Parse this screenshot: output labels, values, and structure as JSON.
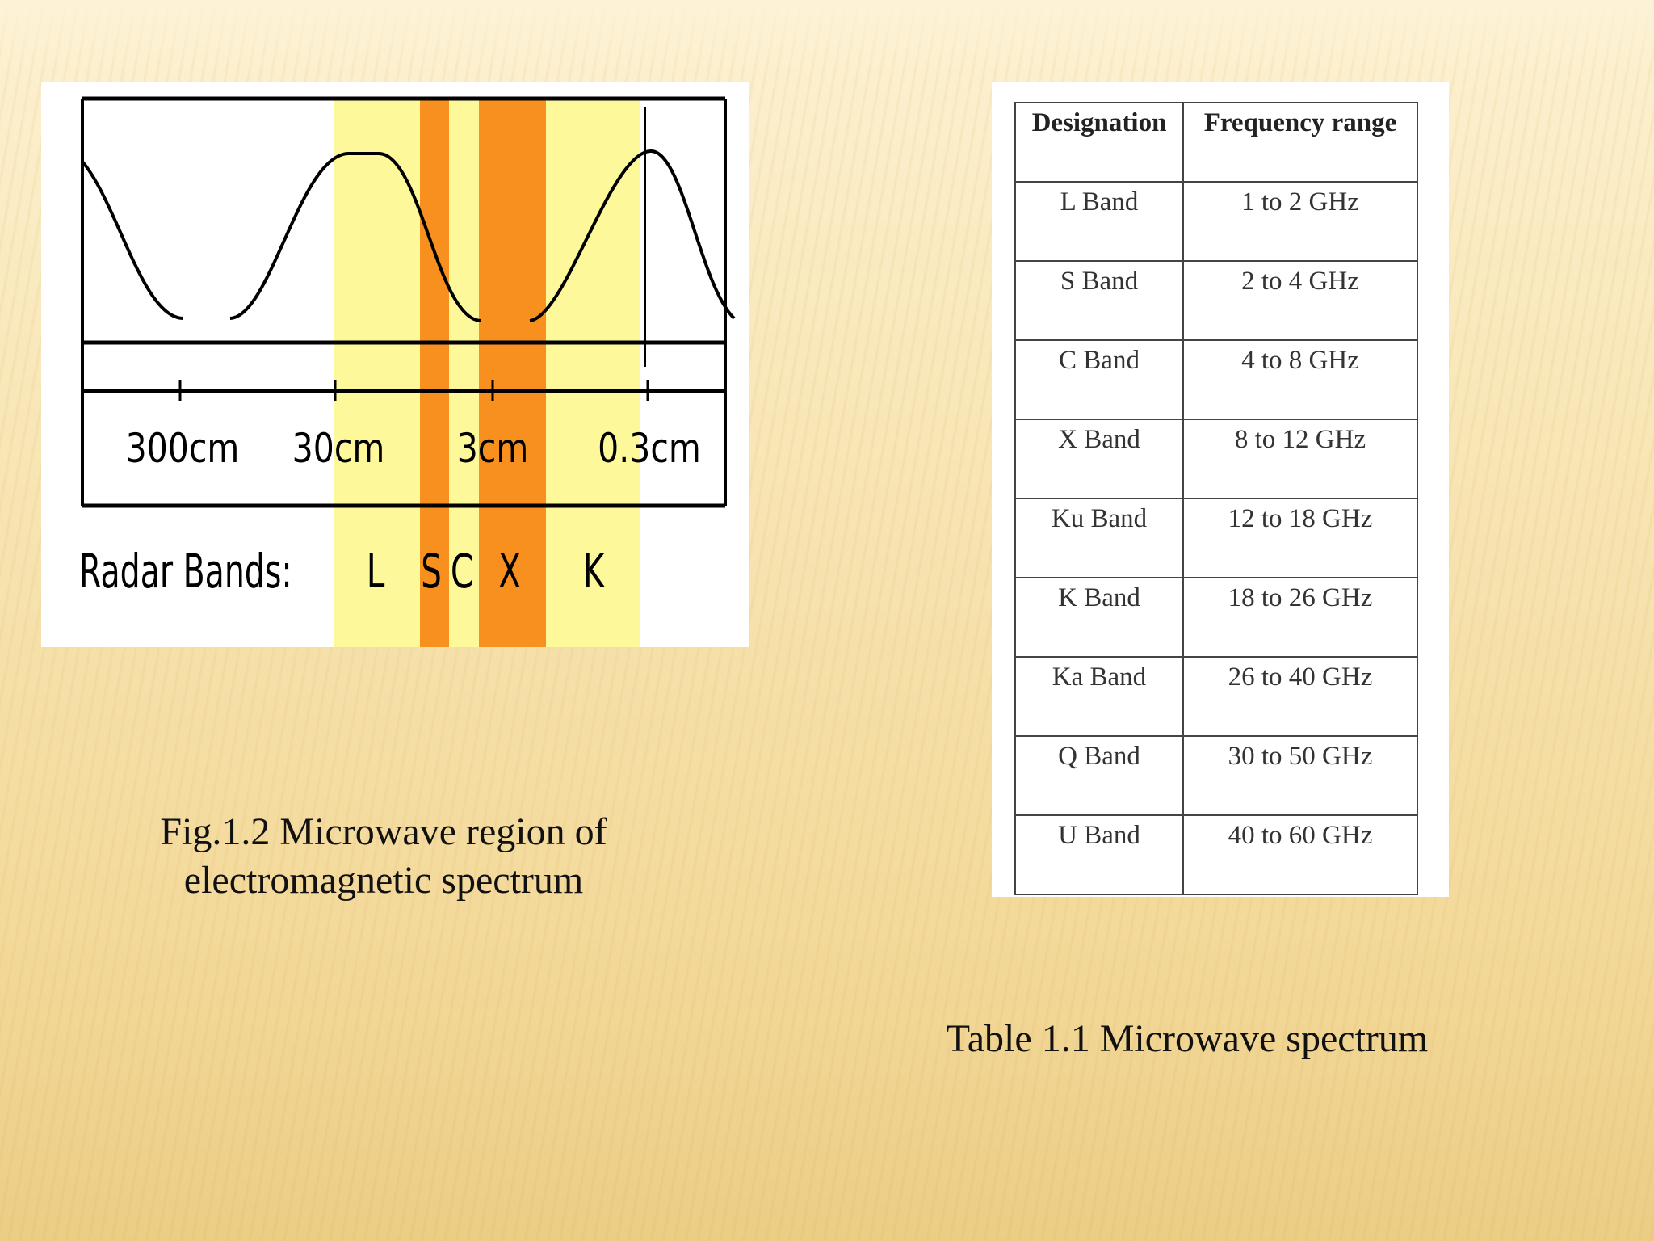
{
  "figure": {
    "scale_labels": [
      "300cm",
      "30cm",
      "3cm",
      "0.3cm"
    ],
    "radar_bands_label": "Radar Bands:",
    "band_letters": [
      "L",
      "S",
      "C",
      "X",
      "K"
    ],
    "colors": {
      "yellow_band": "#fdf99a",
      "orange_band": "#f7901e",
      "line": "#000000"
    }
  },
  "figure_caption": {
    "line1": "Fig.1.2  Microwave region of",
    "line2": "electromagnetic spectrum"
  },
  "table": {
    "headers": [
      "Designation",
      "Frequency range"
    ],
    "rows": [
      [
        "L Band",
        "1 to 2 GHz"
      ],
      [
        "S Band",
        "2 to 4 GHz"
      ],
      [
        "C  Band",
        "4 to 8 GHz"
      ],
      [
        "X Band",
        "8 to 12 GHz"
      ],
      [
        "Ku Band",
        "12 to 18 GHz"
      ],
      [
        "K  Band",
        "18 to 26 GHz"
      ],
      [
        "Ka Band",
        "26 to 40 GHz"
      ],
      [
        "Q Band",
        "30 to 50 GHz"
      ],
      [
        "U Band",
        "40 to 60 GHz"
      ]
    ]
  },
  "table_caption": "Table 1.1 Microwave spectrum"
}
